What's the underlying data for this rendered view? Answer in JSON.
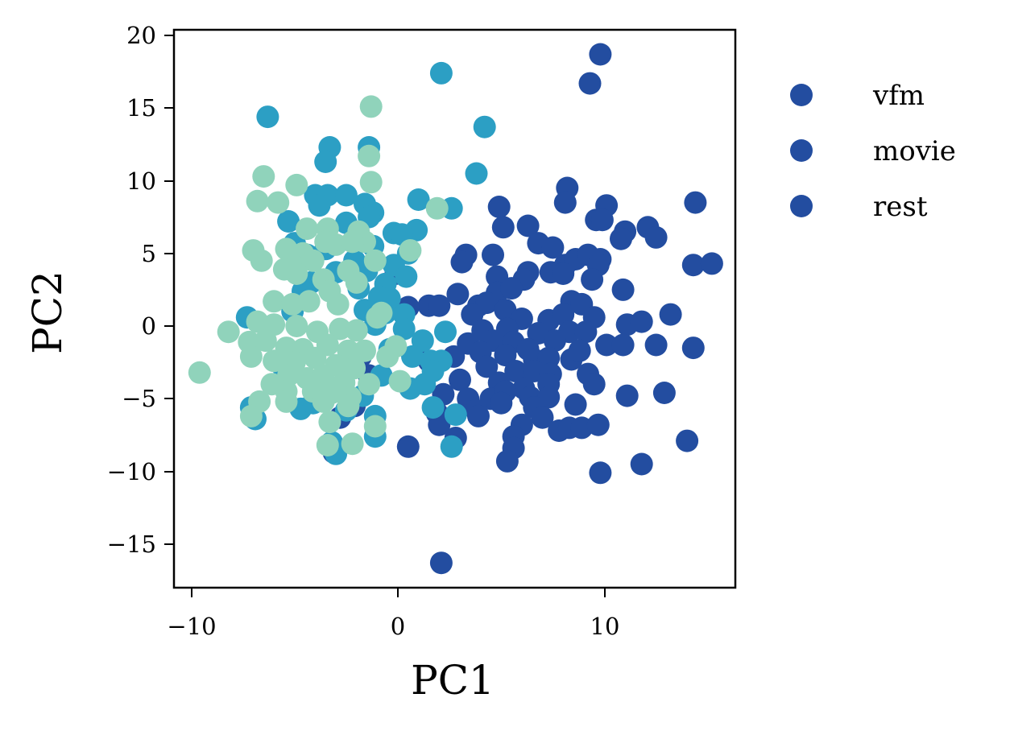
{
  "chart_data": {
    "type": "scatter",
    "title": "",
    "xlabel": "PC1",
    "ylabel": "PC2",
    "xlim": [
      -10.9,
      16.3
    ],
    "ylim": [
      -18.1,
      20.3
    ],
    "xticks": [
      -10,
      0,
      10
    ],
    "xtick_labels": [
      "−10",
      "0",
      "10"
    ],
    "yticks": [
      20,
      15,
      10,
      5,
      0,
      -5,
      -10,
      -15
    ],
    "ytick_labels": [
      "20",
      "15",
      "10",
      "5",
      "0",
      "−5",
      "−10",
      "−15"
    ],
    "grid": false,
    "legend_position": "outside right, upper",
    "legend": [
      {
        "label": "vfm",
        "marker_color": "#234da0"
      },
      {
        "label": "movie",
        "marker_color": "#234da0"
      },
      {
        "label": "rest",
        "marker_color": "#234da0"
      }
    ],
    "series": [
      {
        "name": "vfm",
        "color": "#234da0",
        "points": [
          [
            9.8,
            18.7
          ],
          [
            9.3,
            16.7
          ],
          [
            8.2,
            9.5
          ],
          [
            10.1,
            8.3
          ],
          [
            8.1,
            8.5
          ],
          [
            14.4,
            8.5
          ],
          [
            4.9,
            8.2
          ],
          [
            5.1,
            6.8
          ],
          [
            6.3,
            6.9
          ],
          [
            9.6,
            7.3
          ],
          [
            9.9,
            7.3
          ],
          [
            12.1,
            6.8
          ],
          [
            11.0,
            6.5
          ],
          [
            12.5,
            6.1
          ],
          [
            10.8,
            6.0
          ],
          [
            6.8,
            5.7
          ],
          [
            7.5,
            5.4
          ],
          [
            3.3,
            4.9
          ],
          [
            4.6,
            4.9
          ],
          [
            3.1,
            4.4
          ],
          [
            8.1,
            4.2
          ],
          [
            8.6,
            4.6
          ],
          [
            9.2,
            4.9
          ],
          [
            9.8,
            4.6
          ],
          [
            9.7,
            4.2
          ],
          [
            14.3,
            4.2
          ],
          [
            15.2,
            4.3
          ],
          [
            6.3,
            3.7
          ],
          [
            7.4,
            3.7
          ],
          [
            8.0,
            3.6
          ],
          [
            9.4,
            3.2
          ],
          [
            4.8,
            3.4
          ],
          [
            6.1,
            3.2
          ],
          [
            4.8,
            2.3
          ],
          [
            5.5,
            2.6
          ],
          [
            2.9,
            2.2
          ],
          [
            10.9,
            2.5
          ],
          [
            1.5,
            1.4
          ],
          [
            2.0,
            1.4
          ],
          [
            3.9,
            1.4
          ],
          [
            4.3,
            1.6
          ],
          [
            5.2,
            1.1
          ],
          [
            8.4,
            1.7
          ],
          [
            8.9,
            1.5
          ],
          [
            0.5,
            1.3
          ],
          [
            3.6,
            0.8
          ],
          [
            6.0,
            0.5
          ],
          [
            7.3,
            0.4
          ],
          [
            8.0,
            0.8
          ],
          [
            9.5,
            0.6
          ],
          [
            11.1,
            0.1
          ],
          [
            11.8,
            0.3
          ],
          [
            13.2,
            0.8
          ],
          [
            4.1,
            -0.3
          ],
          [
            5.3,
            -0.2
          ],
          [
            6.8,
            -0.5
          ],
          [
            8.3,
            -0.4
          ],
          [
            9.1,
            -0.4
          ],
          [
            3.4,
            -1.2
          ],
          [
            4.6,
            -1.0
          ],
          [
            5.6,
            -1.1
          ],
          [
            6.3,
            -1.6
          ],
          [
            7.6,
            -1.0
          ],
          [
            10.1,
            -1.3
          ],
          [
            10.9,
            -1.3
          ],
          [
            12.5,
            -1.3
          ],
          [
            14.3,
            -1.5
          ],
          [
            4.0,
            -1.8
          ],
          [
            5.2,
            -2.0
          ],
          [
            6.6,
            -2.3
          ],
          [
            7.3,
            -2.2
          ],
          [
            8.4,
            -2.3
          ],
          [
            8.8,
            -1.7
          ],
          [
            1.5,
            -2.4
          ],
          [
            2.7,
            -2.1
          ],
          [
            4.3,
            -2.8
          ],
          [
            5.7,
            -3.1
          ],
          [
            6.6,
            -3.1
          ],
          [
            7.4,
            -3.3
          ],
          [
            9.2,
            -3.3
          ],
          [
            9.5,
            -4.0
          ],
          [
            3.0,
            -3.7
          ],
          [
            4.9,
            -3.9
          ],
          [
            6.1,
            -4.3
          ],
          [
            7.3,
            -4.0
          ],
          [
            11.1,
            -4.8
          ],
          [
            12.9,
            -4.6
          ],
          [
            2.2,
            -4.7
          ],
          [
            3.4,
            -5.0
          ],
          [
            4.5,
            -5.0
          ],
          [
            5.2,
            -4.5
          ],
          [
            6.4,
            -4.9
          ],
          [
            7.3,
            -4.9
          ],
          [
            8.6,
            -5.4
          ],
          [
            3.8,
            -5.8
          ],
          [
            3.9,
            -6.2
          ],
          [
            5.0,
            -5.3
          ],
          [
            6.6,
            -5.6
          ],
          [
            7.0,
            -6.3
          ],
          [
            1.9,
            -6.0
          ],
          [
            2.0,
            -6.8
          ],
          [
            6.0,
            -6.8
          ],
          [
            7.8,
            -7.2
          ],
          [
            8.3,
            -7.0
          ],
          [
            8.9,
            -7.0
          ],
          [
            9.7,
            -6.8
          ],
          [
            5.6,
            -7.6
          ],
          [
            2.8,
            -7.7
          ],
          [
            0.5,
            -8.3
          ],
          [
            5.6,
            -8.4
          ],
          [
            5.3,
            -9.3
          ],
          [
            11.8,
            -9.5
          ],
          [
            14.0,
            -7.9
          ],
          [
            9.8,
            -10.1
          ],
          [
            2.1,
            -16.3
          ],
          [
            -1.4,
            -3.4
          ],
          [
            -2.1,
            -5.5
          ],
          [
            -2.8,
            -6.3
          ],
          [
            -3.1,
            -8.7
          ],
          [
            -1.8,
            -2.1
          ],
          [
            -0.1,
            3.6
          ]
        ]
      },
      {
        "name": "movie",
        "color": "#2c9fc4",
        "points": [
          [
            2.1,
            17.4
          ],
          [
            4.2,
            13.7
          ],
          [
            -6.3,
            14.4
          ],
          [
            -3.3,
            12.3
          ],
          [
            -1.4,
            12.3
          ],
          [
            -3.5,
            11.3
          ],
          [
            3.8,
            10.5
          ],
          [
            -4.0,
            9.0
          ],
          [
            -3.4,
            9.0
          ],
          [
            -2.5,
            9.0
          ],
          [
            -1.6,
            8.4
          ],
          [
            1.0,
            8.7
          ],
          [
            2.6,
            8.1
          ],
          [
            -3.8,
            8.3
          ],
          [
            -1.2,
            7.8
          ],
          [
            -2.5,
            7.1
          ],
          [
            -5.3,
            7.2
          ],
          [
            -1.4,
            7.5
          ],
          [
            0.9,
            6.6
          ],
          [
            -0.2,
            6.4
          ],
          [
            0.2,
            6.3
          ],
          [
            -5.0,
            5.7
          ],
          [
            -3.5,
            5.3
          ],
          [
            -1.2,
            5.5
          ],
          [
            0.5,
            5.0
          ],
          [
            -4.4,
            4.9
          ],
          [
            -2.1,
            4.5
          ],
          [
            -0.2,
            4.2
          ],
          [
            -5.2,
            3.9
          ],
          [
            -3.0,
            3.7
          ],
          [
            -1.5,
            3.8
          ],
          [
            0.4,
            3.4
          ],
          [
            -4.2,
            3.0
          ],
          [
            -1.9,
            2.6
          ],
          [
            -0.6,
            2.9
          ],
          [
            -4.6,
            2.4
          ],
          [
            -0.9,
            2.0
          ],
          [
            -0.4,
            1.9
          ],
          [
            -7.3,
            0.6
          ],
          [
            -5.1,
            1.0
          ],
          [
            -1.6,
            1.1
          ],
          [
            -0.6,
            0.9
          ],
          [
            0.3,
            0.8
          ],
          [
            -1.1,
            0.1
          ],
          [
            0.3,
            -0.2
          ],
          [
            1.2,
            -1.0
          ],
          [
            2.3,
            -0.4
          ],
          [
            -0.4,
            -1.6
          ],
          [
            0.7,
            -2.1
          ],
          [
            1.6,
            -2.4
          ],
          [
            2.1,
            -2.4
          ],
          [
            -0.8,
            -3.4
          ],
          [
            1.7,
            -3.1
          ],
          [
            -5.5,
            -3.0
          ],
          [
            0.6,
            -4.3
          ],
          [
            1.3,
            -4.0
          ],
          [
            -7.1,
            -5.6
          ],
          [
            -6.9,
            -6.4
          ],
          [
            -4.7,
            -5.7
          ],
          [
            -1.7,
            -4.8
          ],
          [
            -2.5,
            -5.8
          ],
          [
            -1.1,
            -6.2
          ],
          [
            1.7,
            -5.6
          ],
          [
            2.8,
            -6.1
          ],
          [
            -1.1,
            -7.6
          ],
          [
            2.6,
            -8.3
          ],
          [
            -3.2,
            -8.0
          ],
          [
            -3.0,
            -8.8
          ],
          [
            -4.1,
            -5.3
          ]
        ]
      },
      {
        "name": "rest",
        "color": "#90d3bb",
        "points": [
          [
            -1.3,
            15.1
          ],
          [
            -1.4,
            11.7
          ],
          [
            -1.3,
            9.9
          ],
          [
            -6.5,
            10.3
          ],
          [
            -4.9,
            9.7
          ],
          [
            -6.8,
            8.6
          ],
          [
            -5.8,
            8.5
          ],
          [
            1.9,
            8.1
          ],
          [
            -4.4,
            6.7
          ],
          [
            -3.4,
            6.7
          ],
          [
            -1.9,
            6.5
          ],
          [
            -1.6,
            5.8
          ],
          [
            0.6,
            5.2
          ],
          [
            -7.0,
            5.2
          ],
          [
            -6.6,
            4.5
          ],
          [
            -5.4,
            5.3
          ],
          [
            -4.6,
            5.0
          ],
          [
            -3.5,
            5.8
          ],
          [
            -3.0,
            5.6
          ],
          [
            -2.2,
            5.8
          ],
          [
            -1.1,
            4.5
          ],
          [
            -5.0,
            4.1
          ],
          [
            -4.1,
            4.5
          ],
          [
            -2.4,
            3.8
          ],
          [
            -3.6,
            3.2
          ],
          [
            -4.9,
            3.6
          ],
          [
            -5.5,
            3.9
          ],
          [
            -2.0,
            3.0
          ],
          [
            -6.0,
            1.7
          ],
          [
            -5.1,
            1.5
          ],
          [
            -4.3,
            1.7
          ],
          [
            -3.3,
            2.4
          ],
          [
            -2.9,
            1.5
          ],
          [
            -1.0,
            0.6
          ],
          [
            -0.8,
            0.9
          ],
          [
            -8.2,
            -0.4
          ],
          [
            -6.8,
            0.3
          ],
          [
            -6.0,
            0.1
          ],
          [
            -4.9,
            0.0
          ],
          [
            -3.9,
            -0.4
          ],
          [
            -2.8,
            -0.2
          ],
          [
            -2.0,
            -0.3
          ],
          [
            -7.2,
            -1.1
          ],
          [
            -6.4,
            -1.0
          ],
          [
            -5.4,
            -1.5
          ],
          [
            -4.6,
            -1.6
          ],
          [
            -3.4,
            -1.3
          ],
          [
            -2.4,
            -1.7
          ],
          [
            -1.6,
            -1.7
          ],
          [
            -0.1,
            -1.4
          ],
          [
            -7.1,
            -2.1
          ],
          [
            -6.0,
            -2.4
          ],
          [
            -5.0,
            -2.5
          ],
          [
            -4.0,
            -2.2
          ],
          [
            -3.0,
            -2.7
          ],
          [
            -2.1,
            -2.9
          ],
          [
            -0.5,
            -2.1
          ],
          [
            -9.6,
            -3.2
          ],
          [
            -5.3,
            -3.4
          ],
          [
            -4.4,
            -3.6
          ],
          [
            -3.6,
            -3.4
          ],
          [
            -2.6,
            -3.9
          ],
          [
            -1.4,
            -4.0
          ],
          [
            0.1,
            -3.8
          ],
          [
            -6.1,
            -4.0
          ],
          [
            -5.4,
            -4.5
          ],
          [
            -4.1,
            -4.5
          ],
          [
            -3.2,
            -4.6
          ],
          [
            -2.3,
            -4.9
          ],
          [
            -6.7,
            -5.2
          ],
          [
            -5.4,
            -5.2
          ],
          [
            -3.6,
            -5.2
          ],
          [
            -2.4,
            -5.5
          ],
          [
            -7.1,
            -6.2
          ],
          [
            -3.3,
            -6.6
          ],
          [
            -1.1,
            -6.9
          ],
          [
            -3.4,
            -8.2
          ],
          [
            -2.2,
            -8.1
          ]
        ]
      }
    ]
  },
  "axes": {
    "x_label": "PC1",
    "y_label": "PC2",
    "x_tick_labels": [
      "−10",
      "0",
      "10"
    ],
    "y_tick_labels": [
      "20",
      "15",
      "10",
      "5",
      "0",
      "−5",
      "−10",
      "−15"
    ]
  },
  "legend": {
    "items": [
      {
        "label": "vfm"
      },
      {
        "label": "movie"
      },
      {
        "label": "rest"
      }
    ],
    "marker_color": "#234da0"
  }
}
